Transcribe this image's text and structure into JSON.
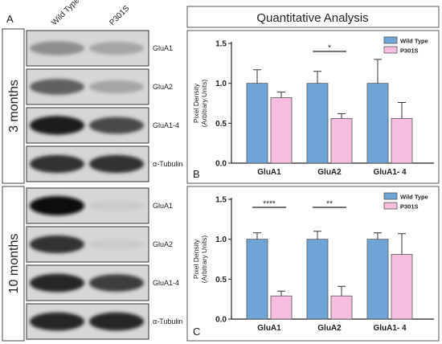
{
  "panel_a": {
    "letter": "A",
    "columns": [
      "Wild Type",
      "P301S"
    ],
    "groups": [
      {
        "label": "3 months",
        "blots": [
          {
            "label": "GluA1",
            "band_wt": 0.45,
            "band_p": 0.35
          },
          {
            "label": "GluA2",
            "band_wt": 0.65,
            "band_p": 0.35
          },
          {
            "label": "GluA1-4",
            "band_wt": 0.95,
            "band_p": 0.75
          },
          {
            "label": "α-Tubulin",
            "band_wt": 0.85,
            "band_p": 0.85
          }
        ]
      },
      {
        "label": "10 months",
        "blots": [
          {
            "label": "GluA1",
            "band_wt": 1.0,
            "band_p": 0.18
          },
          {
            "label": "GluA2",
            "band_wt": 0.85,
            "band_p": 0.18
          },
          {
            "label": "GluA1-4",
            "band_wt": 0.9,
            "band_p": 0.8
          },
          {
            "label": "α-Tubulin",
            "band_wt": 0.9,
            "band_p": 0.9
          }
        ]
      }
    ]
  },
  "panel_title": "Quantitative Analysis",
  "colors": {
    "wild_type": "#6fa5d6",
    "p301s": "#f7bde0",
    "frame": "#555555"
  },
  "chart_data": [
    {
      "type": "bar",
      "panel": "B",
      "categories": [
        "GluA1",
        "GluA2",
        "GluA1- 4"
      ],
      "series": [
        {
          "name": "Wild Type",
          "values": [
            1.0,
            1.0,
            1.0
          ],
          "errors": [
            0.17,
            0.15,
            0.3
          ]
        },
        {
          "name": "P301S",
          "values": [
            0.82,
            0.56,
            0.56
          ],
          "errors": [
            0.07,
            0.06,
            0.2
          ]
        }
      ],
      "ylabel": "Pixel Density\n(Arbitrary Units)",
      "ylim": [
        0,
        1.5
      ],
      "yticks": [
        "0.0",
        "0.5",
        "1.0",
        "1.5"
      ],
      "legend_position": "top-right",
      "significance": [
        {
          "category": "GluA2",
          "label": "*"
        }
      ]
    },
    {
      "type": "bar",
      "panel": "C",
      "categories": [
        "GluA1",
        "GluA2",
        "GluA1- 4"
      ],
      "series": [
        {
          "name": "Wild Type",
          "values": [
            1.0,
            1.0,
            1.0
          ],
          "errors": [
            0.08,
            0.1,
            0.08
          ]
        },
        {
          "name": "P301S",
          "values": [
            0.29,
            0.29,
            0.81
          ],
          "errors": [
            0.06,
            0.12,
            0.26
          ]
        }
      ],
      "ylabel": "Pixel Density\n(Arbitrary Units)",
      "ylim": [
        0,
        1.5
      ],
      "yticks": [
        "0.0",
        "0.5",
        "1.0",
        "1.5"
      ],
      "legend_position": "top-right",
      "significance": [
        {
          "category": "GluA1",
          "label": "****"
        },
        {
          "category": "GluA2",
          "label": "**"
        }
      ]
    }
  ]
}
